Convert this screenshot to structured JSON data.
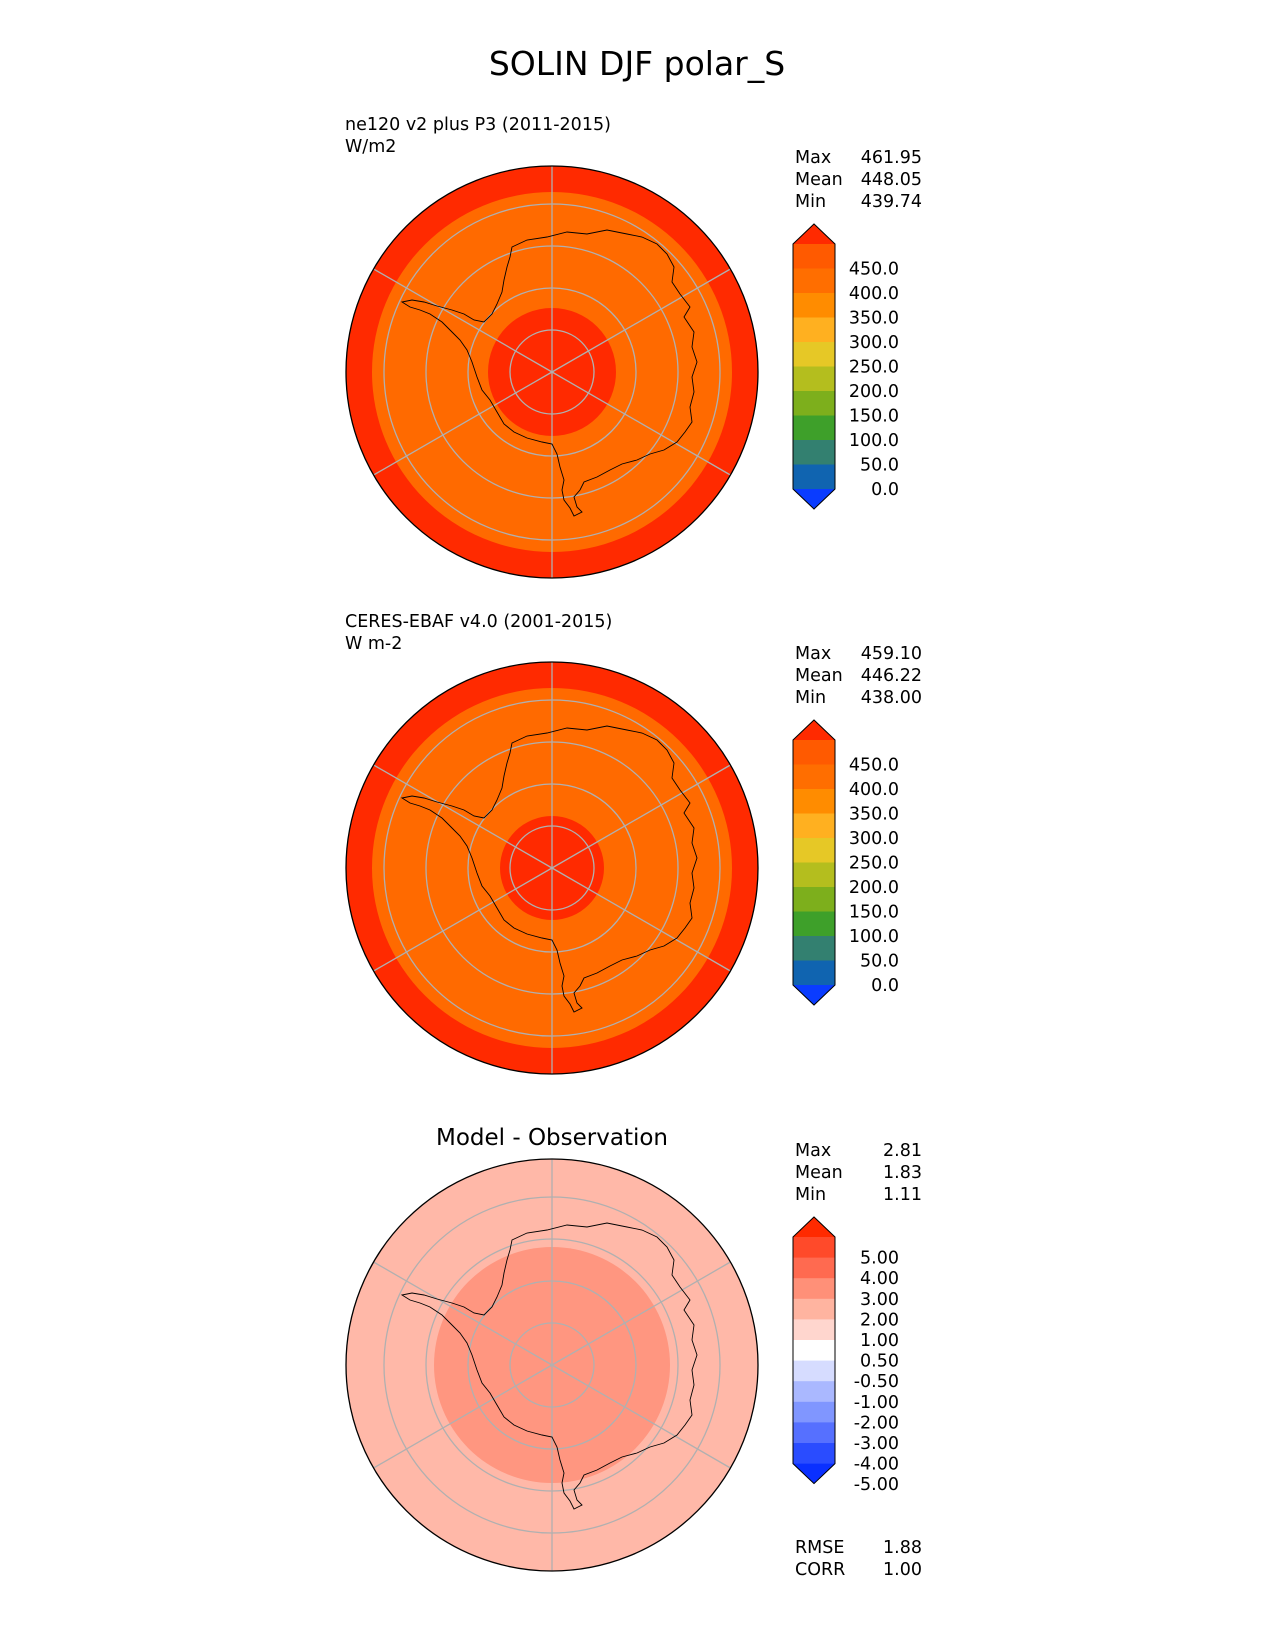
{
  "page_title": "SOLIN DJF polar_S",
  "panels": [
    {
      "title": "",
      "subtitle_line1": "ne120 v2 plus P3 (2011-2015)",
      "subtitle_line2": "W/m2",
      "stats": [
        {
          "label": "Max",
          "value": "461.95"
        },
        {
          "label": "Mean",
          "value": "448.05"
        },
        {
          "label": "Min",
          "value": "439.74"
        }
      ],
      "colorbar": {
        "ticks": [
          "450.0",
          "400.0",
          "350.0",
          "300.0",
          "250.0",
          "200.0",
          "150.0",
          "100.0",
          "50.0",
          "0.0"
        ],
        "colors_top_to_bottom": [
          "#ff2a00",
          "#ff5a00",
          "#ff6e00",
          "#ff8c00",
          "#ffb020",
          "#e6c826",
          "#b4be1e",
          "#7daf1c",
          "#3ea02a",
          "#338070",
          "#1064b0",
          "#0a3cff"
        ]
      },
      "regions": {
        "outer_ring": "#ff2a00",
        "middle": "#ff6a00",
        "core": "#ff2a00"
      },
      "footer": []
    },
    {
      "title": "",
      "subtitle_line1": "CERES-EBAF v4.0 (2001-2015)",
      "subtitle_line2": "W m-2",
      "stats": [
        {
          "label": "Max",
          "value": "459.10"
        },
        {
          "label": "Mean",
          "value": "446.22"
        },
        {
          "label": "Min",
          "value": "438.00"
        }
      ],
      "colorbar": {
        "ticks": [
          "450.0",
          "400.0",
          "350.0",
          "300.0",
          "250.0",
          "200.0",
          "150.0",
          "100.0",
          "50.0",
          "0.0"
        ],
        "colors_top_to_bottom": [
          "#ff2a00",
          "#ff5a00",
          "#ff6e00",
          "#ff8c00",
          "#ffb020",
          "#e6c826",
          "#b4be1e",
          "#7daf1c",
          "#3ea02a",
          "#338070",
          "#1064b0",
          "#0a3cff"
        ]
      },
      "regions": {
        "outer_ring": "#ff2a00",
        "middle": "#ff6a00",
        "core": "#ff2a00"
      },
      "footer": []
    },
    {
      "title": "Model - Observation",
      "subtitle_line1": "",
      "subtitle_line2": "",
      "stats": [
        {
          "label": "Max",
          "value": "2.81"
        },
        {
          "label": "Mean",
          "value": "1.83"
        },
        {
          "label": "Min",
          "value": "1.11"
        }
      ],
      "colorbar": {
        "ticks": [
          "5.00",
          "4.00",
          "3.00",
          "2.00",
          "1.00",
          "0.50",
          "-0.50",
          "-1.00",
          "-2.00",
          "-3.00",
          "-4.00",
          "-5.00"
        ],
        "colors_top_to_bottom": [
          "#ff2a00",
          "#ff4a2a",
          "#ff6a50",
          "#ff9078",
          "#ffb4a0",
          "#ffd6ce",
          "#ffffff",
          "#d6dcff",
          "#aab8ff",
          "#8096ff",
          "#5670ff",
          "#2a4cff",
          "#0a30ff"
        ]
      },
      "regions": {
        "outer_ring": "#ffb8a8",
        "middle": "#ff9680",
        "core": "#ff9680"
      },
      "footer": [
        {
          "label": "RMSE",
          "value": "1.88"
        },
        {
          "label": "CORR",
          "value": "1.00"
        }
      ]
    }
  ],
  "chart_data": [
    {
      "type": "heatmap",
      "projection": "south polar stereographic",
      "subtitle": "ne120 v2 plus P3 (2011-2015)",
      "units": "W/m2",
      "stats": {
        "max": 461.95,
        "mean": 448.05,
        "min": 439.74
      },
      "colorbar_levels": [
        0,
        50,
        100,
        150,
        200,
        250,
        300,
        350,
        400,
        450
      ],
      "colorbar_extend": "both",
      "grid": true
    },
    {
      "type": "heatmap",
      "projection": "south polar stereographic",
      "subtitle": "CERES-EBAF v4.0 (2001-2015)",
      "units": "W m-2",
      "stats": {
        "max": 459.1,
        "mean": 446.22,
        "min": 438.0
      },
      "colorbar_levels": [
        0,
        50,
        100,
        150,
        200,
        250,
        300,
        350,
        400,
        450
      ],
      "colorbar_extend": "both",
      "grid": true
    },
    {
      "type": "heatmap",
      "projection": "south polar stereographic",
      "title": "Model - Observation",
      "stats": {
        "max": 2.81,
        "mean": 1.83,
        "min": 1.11
      },
      "colorbar_levels": [
        -5,
        -4,
        -3,
        -2,
        -1,
        -0.5,
        0.5,
        1,
        2,
        3,
        4,
        5
      ],
      "colorbar_extend": "both",
      "rmse": 1.88,
      "corr": 1.0,
      "grid": true
    }
  ]
}
